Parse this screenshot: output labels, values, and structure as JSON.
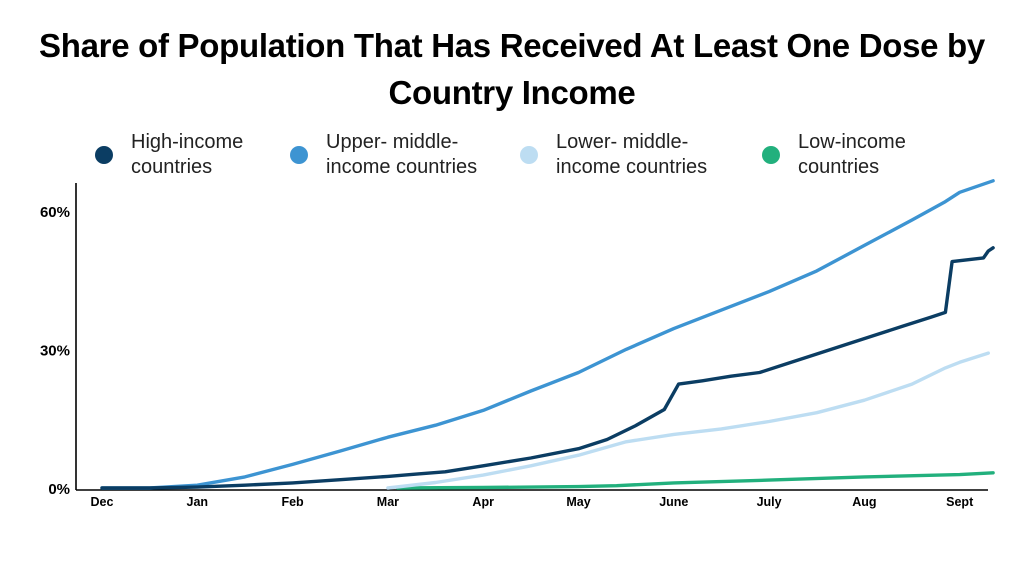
{
  "chart_data": {
    "type": "line",
    "title": "Share of Population That Has Received At Least One Dose by Country Income",
    "xlabel": "",
    "ylabel": "",
    "x_ticks": [
      "Dec",
      "Jan",
      "Feb",
      "Mar",
      "Apr",
      "May",
      "June",
      "July",
      "Aug",
      "Sept"
    ],
    "y_ticks": [
      "0%",
      "30%",
      "60%"
    ],
    "ylim": [
      0,
      65
    ],
    "grid": false,
    "legend_position": "top",
    "series": [
      {
        "name": "High-income countries",
        "color": "#0b3d63",
        "points": [
          [
            0.0,
            0
          ],
          [
            0.5,
            0
          ],
          [
            1.0,
            0.2
          ],
          [
            1.5,
            0.6
          ],
          [
            2.0,
            1.1
          ],
          [
            2.5,
            1.8
          ],
          [
            3.0,
            2.5
          ],
          [
            3.3,
            3.0
          ],
          [
            3.6,
            3.5
          ],
          [
            4.0,
            4.8
          ],
          [
            4.5,
            6.5
          ],
          [
            5.0,
            8.5
          ],
          [
            5.3,
            10.5
          ],
          [
            5.6,
            13.5
          ],
          [
            5.9,
            17
          ],
          [
            6.05,
            22.5
          ],
          [
            6.3,
            23.2
          ],
          [
            6.6,
            24.2
          ],
          [
            6.9,
            25.0
          ],
          [
            7.2,
            27.0
          ],
          [
            7.5,
            29.0
          ],
          [
            7.8,
            31.0
          ],
          [
            8.1,
            33.0
          ],
          [
            8.4,
            35.0
          ],
          [
            8.7,
            37.0
          ],
          [
            8.85,
            38.0
          ],
          [
            8.92,
            49.0
          ],
          [
            9.25,
            49.8
          ],
          [
            9.3,
            51.3
          ],
          [
            9.35,
            52.0
          ]
        ]
      },
      {
        "name": "Upper- middle-income countries",
        "color": "#3d94d2",
        "points": [
          [
            0.0,
            0
          ],
          [
            0.5,
            0
          ],
          [
            1.0,
            0.6
          ],
          [
            1.5,
            2.4
          ],
          [
            2.0,
            5.1
          ],
          [
            2.5,
            8.0
          ],
          [
            3.0,
            11.0
          ],
          [
            3.5,
            13.6
          ],
          [
            4.0,
            16.8
          ],
          [
            4.5,
            21.0
          ],
          [
            5.0,
            25.0
          ],
          [
            5.5,
            30.0
          ],
          [
            6.0,
            34.5
          ],
          [
            6.5,
            38.5
          ],
          [
            7.0,
            42.5
          ],
          [
            7.5,
            47.0
          ],
          [
            8.0,
            52.5
          ],
          [
            8.5,
            58.0
          ],
          [
            8.85,
            62.0
          ],
          [
            9.0,
            64.0
          ],
          [
            9.35,
            66.5
          ]
        ]
      },
      {
        "name": "Lower- middle-income countries",
        "color": "#bdddf2",
        "points": [
          [
            3.0,
            0
          ],
          [
            3.5,
            1.2
          ],
          [
            4.0,
            2.8
          ],
          [
            4.5,
            4.8
          ],
          [
            5.0,
            7.1
          ],
          [
            5.5,
            10.0
          ],
          [
            6.0,
            11.6
          ],
          [
            6.5,
            12.8
          ],
          [
            7.0,
            14.4
          ],
          [
            7.5,
            16.3
          ],
          [
            8.0,
            19.0
          ],
          [
            8.5,
            22.5
          ],
          [
            8.85,
            26.0
          ],
          [
            9.0,
            27.2
          ],
          [
            9.3,
            29.2
          ]
        ]
      },
      {
        "name": "Low-income countries",
        "color": "#22b07d",
        "points": [
          [
            3.1,
            0
          ],
          [
            4.0,
            0.1
          ],
          [
            5.0,
            0.3
          ],
          [
            5.4,
            0.5
          ],
          [
            6.0,
            1.1
          ],
          [
            7.0,
            1.7
          ],
          [
            8.0,
            2.4
          ],
          [
            9.0,
            2.9
          ],
          [
            9.35,
            3.3
          ]
        ]
      }
    ]
  }
}
